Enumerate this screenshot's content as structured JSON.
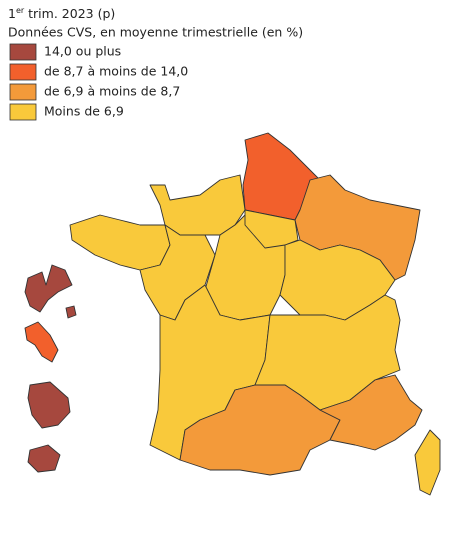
{
  "header": {
    "title_number": "1",
    "title_sup": "er",
    "title_rest": " trim. 2023 (p)",
    "subtitle": "Données CVS, en moyenne trimestrielle (en %)"
  },
  "legend": [
    {
      "label": "14,0 ou plus",
      "color": "#a6483e"
    },
    {
      "label": "de 8,7 à moins de 14,0",
      "color": "#f2602c"
    },
    {
      "label": "de 6,9 à moins de 8,7",
      "color": "#f39a3a"
    },
    {
      "label": "Moins de 6,9",
      "color": "#f9c93b"
    }
  ]
}
